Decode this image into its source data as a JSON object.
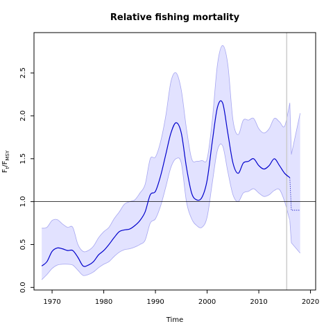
{
  "chart_data": {
    "type": "line",
    "title": "Relative fishing mortality",
    "xlabel": "Time",
    "ylabel": {
      "main": "F",
      "sub1": "t",
      "sep": "/F",
      "sub2": "MSY"
    },
    "xlim": [
      1966.5,
      2021
    ],
    "ylim": [
      -0.03,
      2.97
    ],
    "x_ticks": [
      1970,
      1980,
      1990,
      2000,
      2010,
      2020
    ],
    "y_ticks": [
      0.0,
      0.5,
      1.0,
      1.5,
      2.0,
      2.5
    ],
    "x_tick_labels": [
      "1970",
      "1980",
      "1990",
      "2000",
      "2010",
      "2020"
    ],
    "y_tick_labels": [
      "0.0",
      "0.5",
      "1.0",
      "1.5",
      "2.0",
      "2.5"
    ],
    "reference_line": {
      "y": 1.0,
      "color": "#000000"
    },
    "vertical_marker": {
      "x": 2015.4,
      "color": "#cccccc"
    },
    "colors": {
      "line": "#0000cc",
      "band_fill": "#e2e2ff",
      "band_edge": "#a6a6f0",
      "forecast": "#3333cc"
    },
    "x": [
      1968,
      1969,
      1970,
      1971,
      1972,
      1973,
      1974,
      1975,
      1976,
      1977,
      1978,
      1979,
      1980,
      1981,
      1982,
      1983,
      1984,
      1985,
      1986,
      1987,
      1988,
      1989,
      1990,
      1991,
      1992,
      1993,
      1994,
      1995,
      1996,
      1997,
      1998,
      1999,
      2000,
      2001,
      2002,
      2003,
      2004,
      2005,
      2006,
      2007,
      2008,
      2009,
      2010,
      2011,
      2012,
      2013,
      2014,
      2015,
      2016
    ],
    "series": [
      {
        "values": [
          0.25,
          0.3,
          0.42,
          0.46,
          0.45,
          0.43,
          0.43,
          0.35,
          0.25,
          0.26,
          0.3,
          0.38,
          0.43,
          0.5,
          0.58,
          0.65,
          0.67,
          0.68,
          0.72,
          0.78,
          0.88,
          1.08,
          1.12,
          1.3,
          1.55,
          1.8,
          1.92,
          1.8,
          1.4,
          1.1,
          1.02,
          1.05,
          1.25,
          1.7,
          2.1,
          2.15,
          1.8,
          1.45,
          1.33,
          1.45,
          1.47,
          1.5,
          1.42,
          1.38,
          1.42,
          1.5,
          1.42,
          1.33,
          1.28
        ],
        "lower": [
          0.09,
          0.15,
          0.22,
          0.26,
          0.27,
          0.27,
          0.26,
          0.2,
          0.14,
          0.15,
          0.18,
          0.23,
          0.27,
          0.3,
          0.36,
          0.41,
          0.44,
          0.45,
          0.47,
          0.5,
          0.55,
          0.75,
          0.8,
          0.95,
          1.17,
          1.4,
          1.5,
          1.45,
          1.0,
          0.8,
          0.72,
          0.7,
          0.82,
          1.22,
          1.6,
          1.65,
          1.35,
          1.08,
          1.0,
          1.1,
          1.12,
          1.15,
          1.1,
          1.06,
          1.08,
          1.13,
          1.14,
          1.0,
          0.78
        ],
        "upper": [
          0.69,
          0.7,
          0.78,
          0.79,
          0.74,
          0.7,
          0.7,
          0.5,
          0.42,
          0.43,
          0.48,
          0.58,
          0.65,
          0.7,
          0.8,
          0.88,
          0.97,
          1.0,
          1.02,
          1.1,
          1.2,
          1.5,
          1.52,
          1.7,
          2.0,
          2.4,
          2.5,
          2.3,
          1.85,
          1.5,
          1.47,
          1.48,
          1.5,
          1.95,
          2.6,
          2.82,
          2.6,
          1.95,
          1.78,
          1.95,
          1.95,
          1.97,
          1.85,
          1.8,
          1.85,
          1.97,
          1.93,
          1.88,
          2.15
        ]
      }
    ],
    "forecast": {
      "x": [
        2016,
        2016.3,
        2018
      ],
      "median": [
        1.28,
        0.9,
        0.9
      ],
      "lower": [
        0.78,
        0.52,
        0.4
      ],
      "upper": [
        2.15,
        1.55,
        2.03
      ]
    }
  }
}
